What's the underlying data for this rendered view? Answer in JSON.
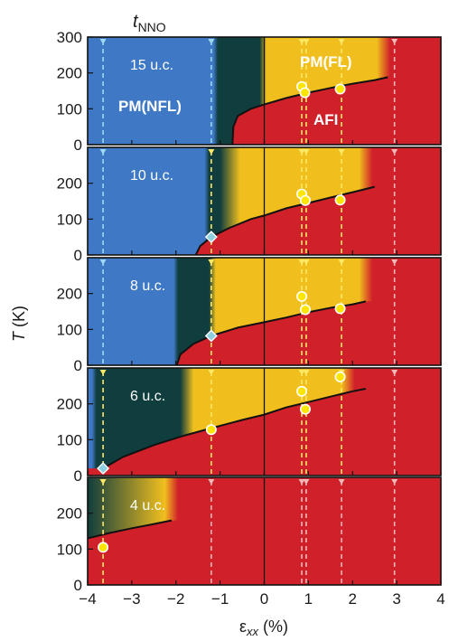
{
  "chart_data": {
    "type": "phase-diagram",
    "title": "t_NNO",
    "title_main": "t",
    "title_sub": "NNO",
    "ylabel": "T (K)",
    "ylabel_main": "T",
    "ylabel_unit": " (K)",
    "xlabel": "εxx (%)",
    "xlabel_main": "ε",
    "xlabel_sub": "xx",
    "xlabel_unit": " (%)",
    "xlim": [
      -4,
      4
    ],
    "ylim": [
      0,
      300
    ],
    "xticks": [
      -4,
      -3,
      -2,
      -1,
      0,
      1,
      2,
      3,
      4
    ],
    "yticks_top": [
      0,
      100,
      200,
      300
    ],
    "yticks": [
      0,
      100,
      200
    ],
    "colors": {
      "nfl_blue": "#3f78c4",
      "dark_teal": "#103d3d",
      "fl_yellow": "#f0bf1e",
      "afi_red": "#d0202a",
      "marker_yellow": "#ffe600",
      "diamond": "#8fd0e0",
      "dash_blue": "#9fd8f2",
      "dash_yellow": "#ffe866",
      "dash_red": "#f0b8b8"
    },
    "region_labels": {
      "pm_nfl": "PM(NFL)",
      "pm_fl": "PM(FL)",
      "afi": "AFI"
    },
    "panels": [
      {
        "label": "15 u.c.",
        "blue_end": -1.1,
        "teal_end": -0.1,
        "grad_start": -0.45,
        "grad_end": 0.05,
        "red_start": 2.7,
        "boundary": [
          [
            -0.72,
            0
          ],
          [
            -0.7,
            50
          ],
          [
            -0.6,
            80
          ],
          [
            -0.3,
            100
          ],
          [
            0,
            112
          ],
          [
            0.5,
            130
          ],
          [
            1,
            145
          ],
          [
            1.5,
            158
          ],
          [
            2,
            170
          ],
          [
            2.5,
            180
          ],
          [
            2.8,
            188
          ]
        ],
        "points": [
          [
            0.85,
            162
          ],
          [
            0.92,
            145
          ],
          [
            1.72,
            155
          ]
        ],
        "diamonds": [],
        "dash_blue": [
          -3.65,
          -1.2
        ],
        "dash_yellow": [
          0.85,
          0.95,
          1.75
        ],
        "dash_red": [
          2.95
        ]
      },
      {
        "label": "10 u.c.",
        "blue_end": -1.3,
        "teal_end": -1.0,
        "grad_start": -1.05,
        "grad_end": -0.55,
        "red_start": 2.3,
        "boundary": [
          [
            -1.55,
            0
          ],
          [
            -1.45,
            25
          ],
          [
            -1.2,
            50
          ],
          [
            -0.8,
            75
          ],
          [
            -0.3,
            100
          ],
          [
            0,
            110
          ],
          [
            0.5,
            130
          ],
          [
            1,
            145
          ],
          [
            1.5,
            160
          ],
          [
            2,
            175
          ],
          [
            2.5,
            190
          ]
        ],
        "points": [
          [
            0.85,
            170
          ],
          [
            0.93,
            152
          ],
          [
            1.72,
            153
          ]
        ],
        "diamonds": [
          [
            -1.2,
            50
          ]
        ],
        "dash_blue": [
          -3.65
        ],
        "dash_yellow": [
          -1.2,
          0.85,
          0.95,
          1.75
        ],
        "dash_red": [
          2.95
        ]
      },
      {
        "label": "8 u.c.",
        "blue_end": -2.0,
        "teal_end": -1.25,
        "grad_start": -1.25,
        "grad_end": -1.1,
        "red_start": 2.3,
        "boundary": [
          [
            -1.98,
            0
          ],
          [
            -1.9,
            30
          ],
          [
            -1.6,
            60
          ],
          [
            -1.2,
            82
          ],
          [
            -0.6,
            105
          ],
          [
            0,
            120
          ],
          [
            0.5,
            133
          ],
          [
            1,
            148
          ],
          [
            1.5,
            160
          ],
          [
            2,
            170
          ],
          [
            2.3,
            178
          ]
        ],
        "points": [
          [
            0.85,
            192
          ],
          [
            0.93,
            155
          ],
          [
            1.72,
            158
          ]
        ],
        "diamonds": [
          [
            -1.2,
            82
          ]
        ],
        "dash_blue": [
          -3.65
        ],
        "dash_yellow": [
          -1.2,
          0.85,
          0.95,
          1.75
        ],
        "dash_red": [
          2.95
        ]
      },
      {
        "label": "6 u.c.",
        "blue_end": -3.85,
        "teal_end": -1.9,
        "grad_start": -1.9,
        "grad_end": -1.6,
        "red_start": 1.9,
        "boundary": [
          [
            -3.65,
            20
          ],
          [
            -3.2,
            52
          ],
          [
            -2.5,
            85
          ],
          [
            -1.8,
            112
          ],
          [
            -1.2,
            132
          ],
          [
            -0.5,
            155
          ],
          [
            0,
            170
          ],
          [
            0.5,
            190
          ],
          [
            1,
            205
          ],
          [
            1.5,
            220
          ],
          [
            2,
            235
          ],
          [
            2.3,
            242
          ]
        ],
        "points": [
          [
            -1.2,
            128
          ],
          [
            0.85,
            235
          ],
          [
            0.93,
            185
          ],
          [
            1.72,
            275
          ]
        ],
        "diamonds": [
          [
            -3.65,
            20
          ]
        ],
        "dash_blue": [],
        "dash_yellow": [
          -3.65,
          -1.2,
          0.85,
          0.95,
          1.75
        ],
        "dash_red": [
          2.95
        ]
      },
      {
        "label": "4 u.c.",
        "blue_end": -4.2,
        "teal_end": -4.2,
        "grad_start": -2.25,
        "grad_end": -1.95,
        "red_start": -2.1,
        "boundary": [
          [
            -4.0,
            130
          ],
          [
            -3.5,
            145
          ],
          [
            -3.0,
            158
          ],
          [
            -2.5,
            170
          ],
          [
            -2.1,
            180
          ]
        ],
        "points": [
          [
            -3.65,
            105
          ]
        ],
        "diamonds": [],
        "dash_blue": [],
        "dash_yellow": [
          -3.65
        ],
        "dash_red": [
          -1.2,
          0.85,
          0.95,
          1.75,
          2.95
        ]
      }
    ]
  }
}
